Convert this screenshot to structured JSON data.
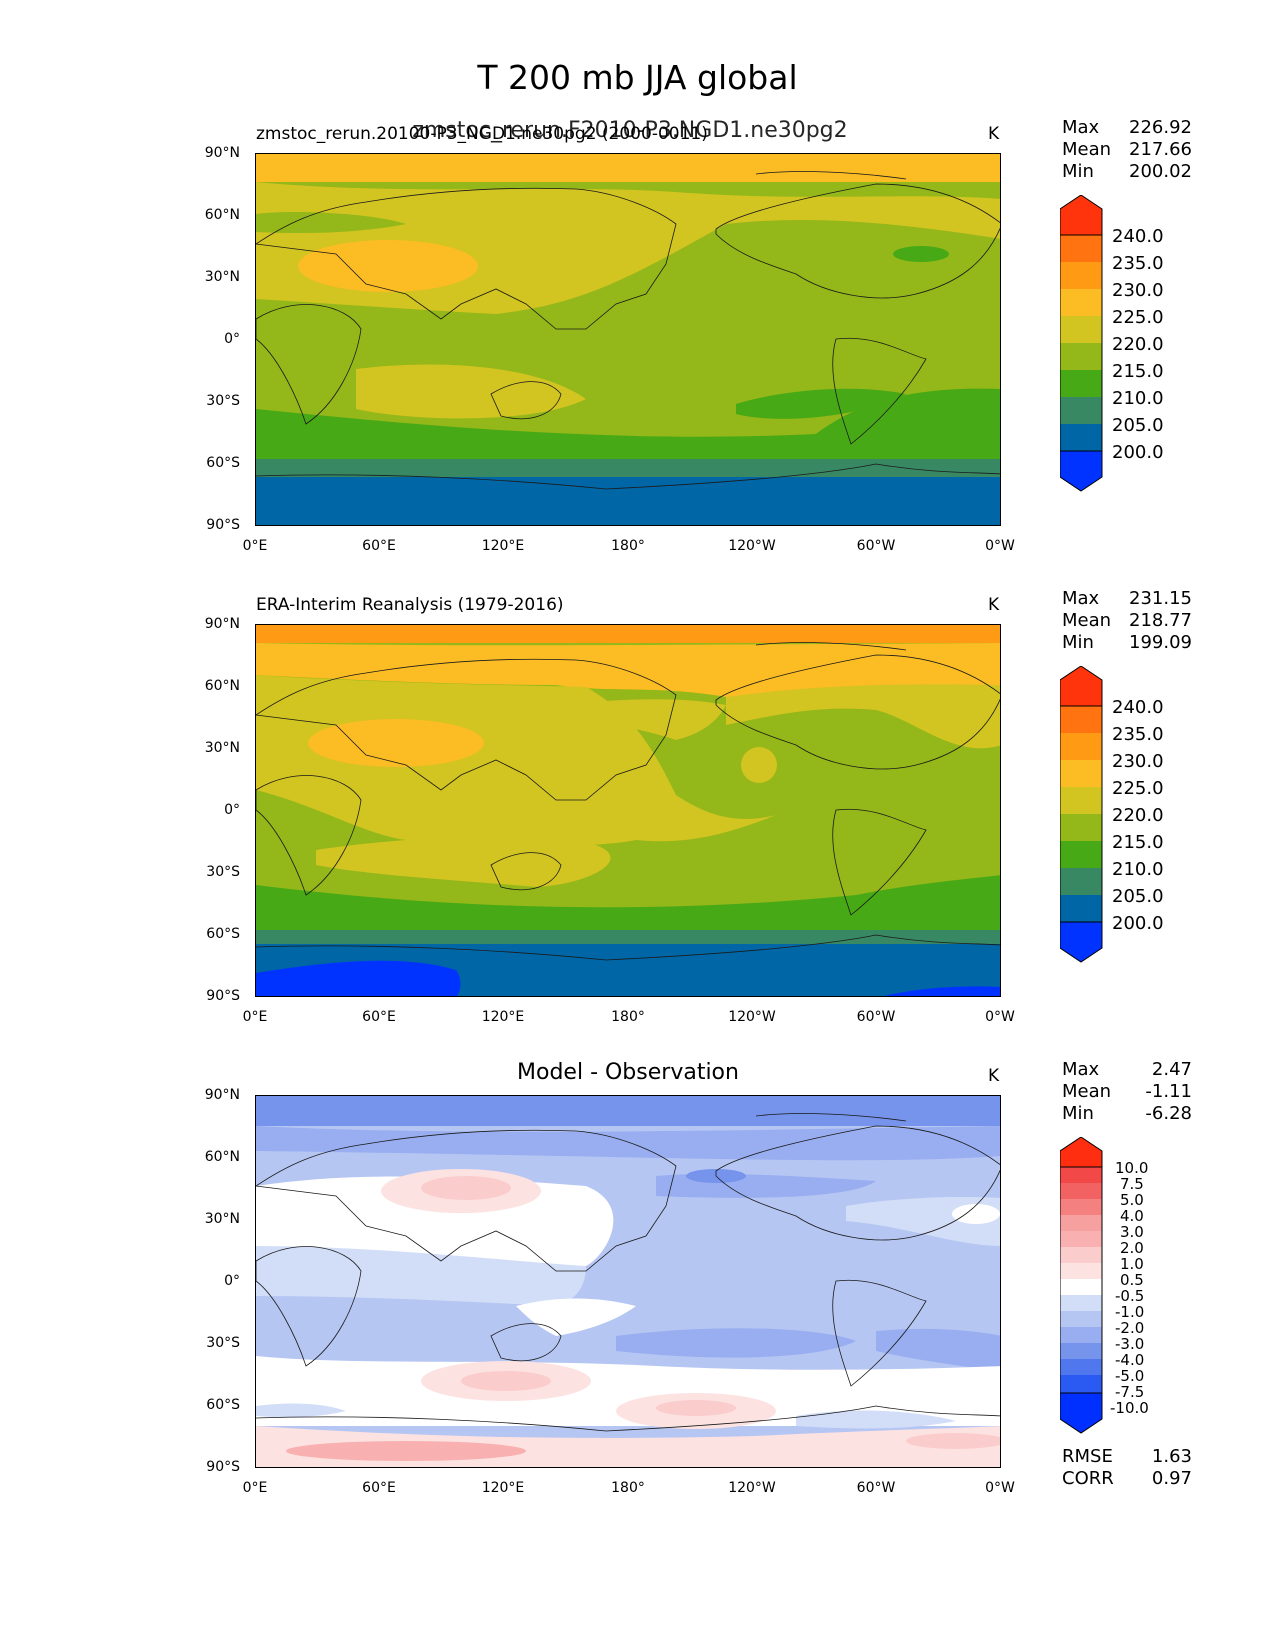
{
  "figure": {
    "title": "T 200 mb JJA global",
    "x_ticks": [
      "0°E",
      "60°E",
      "120°E",
      "180°",
      "120°W",
      "60°W",
      "0°W"
    ],
    "y_ticks": [
      "90°N",
      "60°N",
      "30°N",
      "0°",
      "30°S",
      "60°S",
      "90°S"
    ]
  },
  "panels": [
    {
      "id": "test",
      "subtitle_left": "zmstoc_rerun.20100-P3_NGD1.ne30pg2 (2000-0011)",
      "subtitle_center": "zmstoc_rerun.F2010-P3.NGD1.ne30pg2",
      "units": "K",
      "stats": [
        {
          "label": "Max",
          "value": "226.92"
        },
        {
          "label": "Mean",
          "value": "217.66"
        },
        {
          "label": "Min",
          "value": "200.02"
        }
      ],
      "colorbar_labels": [
        "240.0",
        "235.0",
        "230.0",
        "225.0",
        "220.0",
        "215.0",
        "210.0",
        "205.0",
        "200.0"
      ]
    },
    {
      "id": "reference",
      "subtitle_left": "ERA-Interim Reanalysis (1979-2016)",
      "units": "K",
      "stats": [
        {
          "label": "Max",
          "value": "231.15"
        },
        {
          "label": "Mean",
          "value": "218.77"
        },
        {
          "label": "Min",
          "value": "199.09"
        }
      ],
      "colorbar_labels": [
        "240.0",
        "235.0",
        "230.0",
        "225.0",
        "220.0",
        "215.0",
        "210.0",
        "205.0",
        "200.0"
      ]
    },
    {
      "id": "diff",
      "subtitle_center": "Model - Observation",
      "units": "K",
      "stats": [
        {
          "label": "Max",
          "value": "2.47"
        },
        {
          "label": "Mean",
          "value": "-1.11"
        },
        {
          "label": "Min",
          "value": "-6.28"
        }
      ],
      "colorbar_labels": [
        "10.0",
        "7.5",
        "5.0",
        "4.0",
        "3.0",
        "2.0",
        "1.0",
        "0.5",
        "-0.5",
        "-1.0",
        "-2.0",
        "-3.0",
        "-4.0",
        "-5.0",
        "-7.5",
        "-10.0"
      ],
      "metrics": [
        {
          "label": "RMSE",
          "value": "1.63"
        },
        {
          "label": "CORR",
          "value": "0.97"
        }
      ]
    }
  ],
  "colors": {
    "abs_levels": [
      "#0033ff",
      "#0066a6",
      "#378863",
      "#47a915",
      "#94b719",
      "#d2c421",
      "#fcbc24",
      "#ff9a14",
      "#ff7410",
      "#ff340c"
    ],
    "diff_levels": [
      "#0030ff",
      "#2a5af2",
      "#5077ee",
      "#7694ec",
      "#98aef0",
      "#b6c6f3",
      "#d2ddf8",
      "#ffffff",
      "#fde2e2",
      "#fbcccc",
      "#f9b0b0",
      "#f7a0a0",
      "#f58080",
      "#f36262",
      "#f24848",
      "#ff2e10"
    ]
  }
}
